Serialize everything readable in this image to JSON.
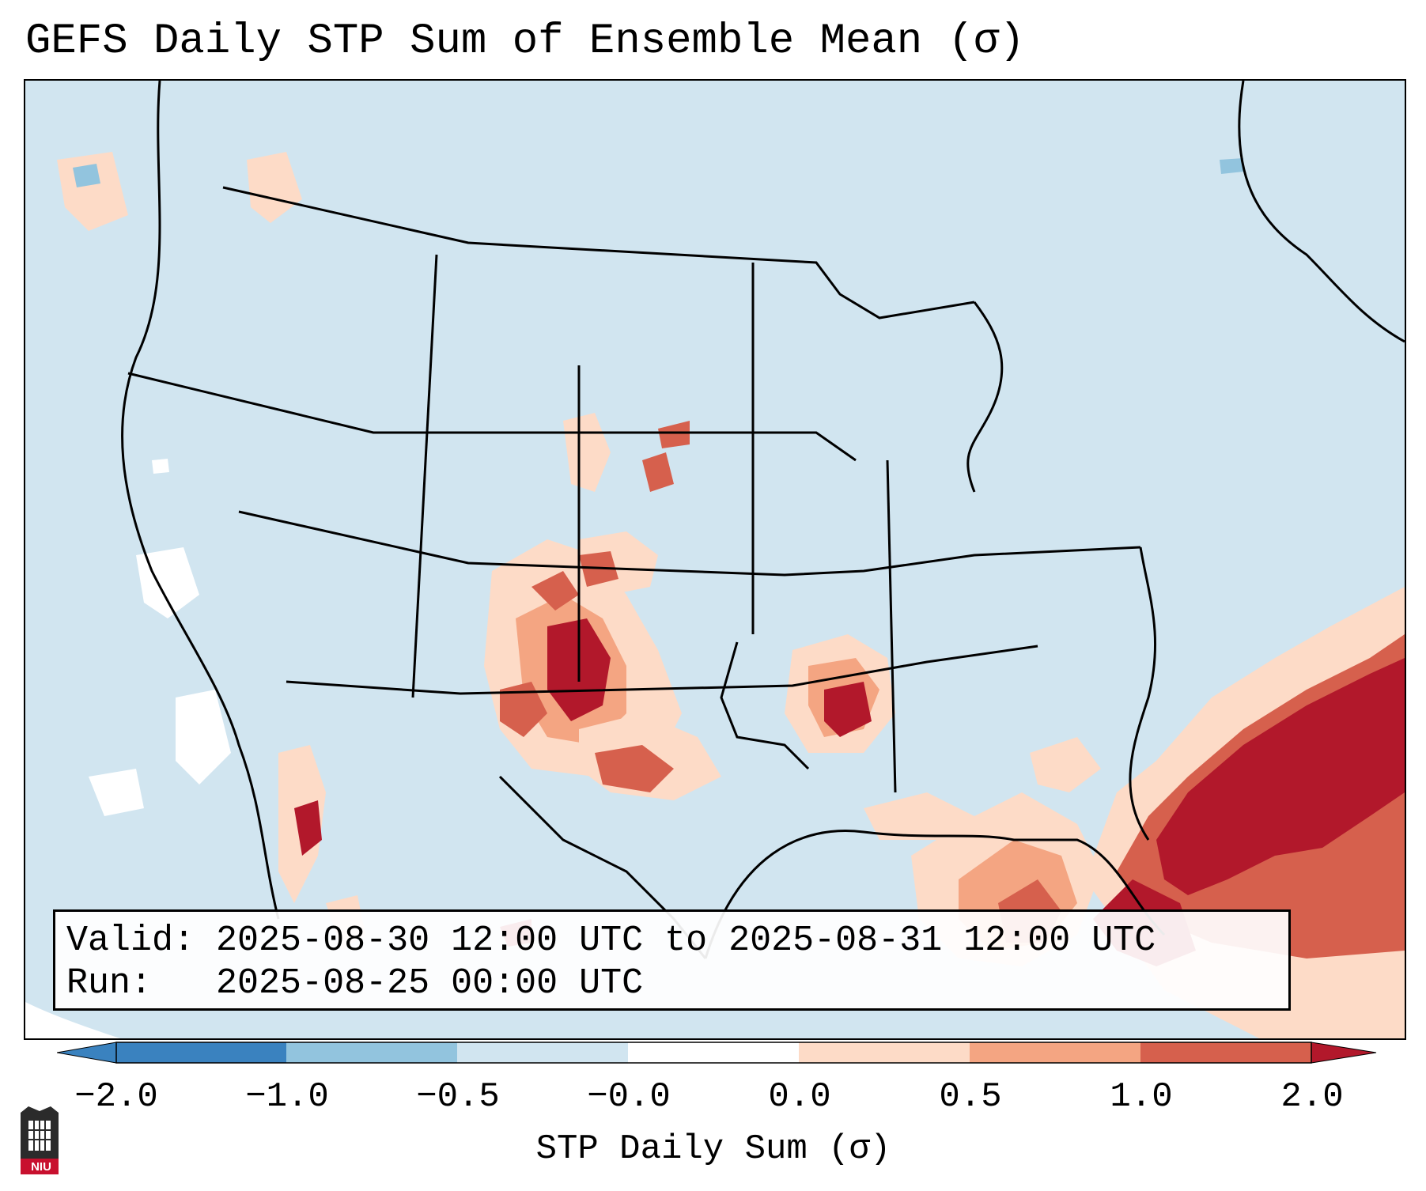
{
  "title": "GEFS Daily STP Sum of Ensemble Mean (σ)",
  "info": {
    "valid_label": "Valid:",
    "valid_value": "2025-08-30 12:00 UTC to 2025-08-31 12:00 UTC",
    "run_label": "Run:",
    "run_value": "2025-08-25 00:00 UTC"
  },
  "colorbar": {
    "label": "STP Daily Sum (σ)",
    "ticks": [
      "−2.0",
      "−1.0",
      "−0.5",
      "−0.0",
      "0.0",
      "0.5",
      "1.0",
      "2.0"
    ],
    "colors": [
      "#3a82bf",
      "#92c4de",
      "#d1e5f0",
      "#ffffff",
      "#fddbc7",
      "#f4a582",
      "#d6604d",
      "#b2182b"
    ]
  },
  "logo": {
    "text": "NIU"
  },
  "colors": {
    "background_field": "#d1e5f0",
    "strong_positive": "#b2182b",
    "moderate_positive": "#d6604d",
    "light_positive": "#f4a582",
    "faint_positive": "#fddbc7",
    "negative": "#92c4de"
  }
}
